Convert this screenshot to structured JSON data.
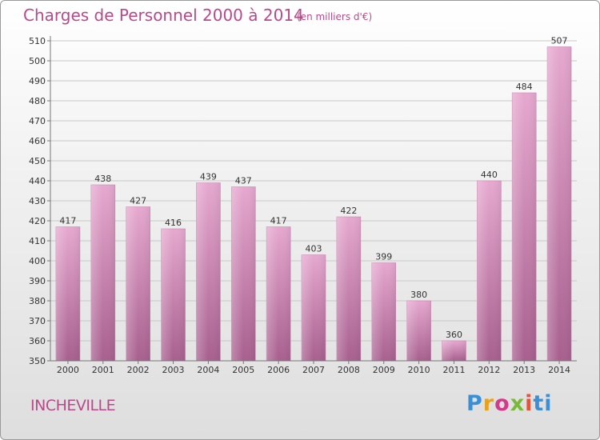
{
  "header": {
    "title": "Charges de Personnel 2000 à 2014",
    "subtitle": "(en milliers d'€)"
  },
  "footer": {
    "town": "INCHEVILLE",
    "logo": [
      "P",
      "r",
      "o",
      "x",
      "i",
      "ti"
    ]
  },
  "colors": {
    "accent": "#b84a8a",
    "bar_top": "#e6a8cf",
    "bar_bottom": "#a8608f"
  },
  "chart_data": {
    "type": "bar",
    "title": "Charges de Personnel 2000 à 2014",
    "subtitle": "(en milliers d'€)",
    "categories": [
      "2000",
      "2001",
      "2002",
      "2003",
      "2004",
      "2005",
      "2006",
      "2007",
      "2008",
      "2009",
      "2010",
      "2011",
      "2012",
      "2013",
      "2014"
    ],
    "values": [
      417,
      438,
      427,
      416,
      439,
      437,
      417,
      403,
      422,
      399,
      380,
      360,
      440,
      484,
      507
    ],
    "xlabel": "",
    "ylabel": "",
    "ylim": [
      350,
      510
    ],
    "yticks": [
      350,
      360,
      370,
      380,
      390,
      400,
      410,
      420,
      430,
      440,
      450,
      460,
      470,
      480,
      490,
      500,
      510
    ],
    "grid": true,
    "data_labels": true
  }
}
